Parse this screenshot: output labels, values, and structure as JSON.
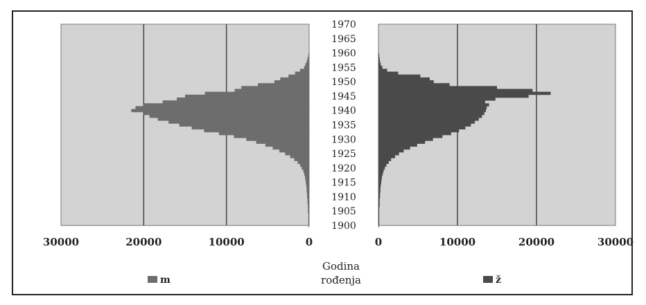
{
  "chart_data": {
    "type": "bar",
    "subtype": "population-pyramid",
    "center_label_lines": [
      "Godina",
      "rođenja"
    ],
    "y_ticks": [
      "1970",
      "1965",
      "1960",
      "1955",
      "1950",
      "1945",
      "1940",
      "1935",
      "1930",
      "1925",
      "1920",
      "1915",
      "1910",
      "1905",
      "1900"
    ],
    "left_panel": {
      "series_name": "m",
      "xlim": [
        30000,
        0
      ],
      "x_ticks": [
        "30000",
        "20000",
        "10000",
        "0"
      ],
      "grid": true
    },
    "right_panel": {
      "series_name": "ž",
      "xlim": [
        0,
        30000
      ],
      "x_ticks": [
        "0",
        "10000",
        "20000",
        "30000"
      ],
      "grid": true
    },
    "years": [
      1900,
      1901,
      1902,
      1903,
      1904,
      1905,
      1906,
      1907,
      1908,
      1909,
      1910,
      1911,
      1912,
      1913,
      1914,
      1915,
      1916,
      1917,
      1918,
      1919,
      1920,
      1921,
      1922,
      1923,
      1924,
      1925,
      1926,
      1927,
      1928,
      1929,
      1930,
      1931,
      1932,
      1933,
      1934,
      1935,
      1936,
      1937,
      1938,
      1939,
      1940,
      1941,
      1942,
      1943,
      1944,
      1945,
      1946,
      1947,
      1948,
      1949,
      1950,
      1951,
      1952,
      1953,
      1954,
      1955,
      1956,
      1957,
      1958,
      1959,
      1960
    ],
    "series": [
      {
        "name": "m",
        "values": [
          100,
          100,
          100,
          100,
          100,
          150,
          150,
          150,
          200,
          200,
          250,
          250,
          300,
          300,
          350,
          400,
          450,
          500,
          600,
          700,
          900,
          1100,
          1400,
          1800,
          2300,
          2900,
          3600,
          4400,
          5300,
          6400,
          7600,
          9100,
          10900,
          12700,
          14200,
          15700,
          17000,
          18300,
          19300,
          20000,
          21500,
          21000,
          20000,
          17700,
          16000,
          15000,
          12600,
          9000,
          8200,
          6200,
          4200,
          3500,
          2500,
          1700,
          1100,
          600,
          450,
          300,
          200,
          100,
          50
        ],
        "color": "#6d6d6d"
      },
      {
        "name": "ž",
        "values": [
          100,
          100,
          100,
          100,
          100,
          100,
          100,
          150,
          150,
          150,
          200,
          200,
          250,
          250,
          300,
          350,
          400,
          450,
          550,
          650,
          800,
          1000,
          1300,
          1600,
          2100,
          2600,
          3200,
          4000,
          4900,
          5900,
          6900,
          8100,
          9200,
          10200,
          11000,
          11700,
          12200,
          12700,
          13100,
          13400,
          13600,
          13700,
          14000,
          13500,
          14800,
          19000,
          21800,
          19500,
          15000,
          9000,
          7000,
          6500,
          5300,
          2500,
          1100,
          500,
          300,
          200,
          150,
          100,
          50
        ],
        "color": "#4a4a4a"
      }
    ]
  },
  "legend": {
    "m_label": "m",
    "z_label": "ž",
    "m_color": "#6d6d6d",
    "z_color": "#4a4a4a"
  },
  "colors": {
    "plot_background": "#d3d3d3",
    "gridline": "#444444"
  }
}
